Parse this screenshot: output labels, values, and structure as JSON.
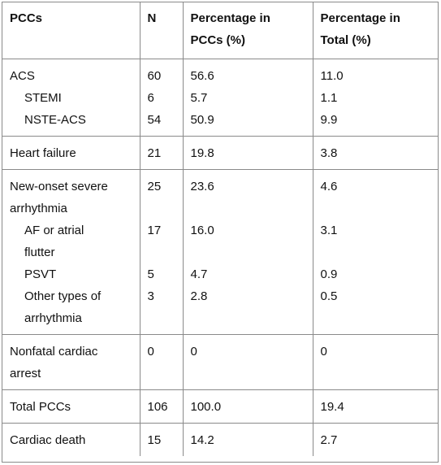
{
  "header": {
    "col1": "PCCs",
    "col2": "N",
    "col3_line1": "Percentage in",
    "col3_line2": "PCCs (%)",
    "col4_line1": "Percentage in",
    "col4_line2": "Total (%)"
  },
  "groups": [
    {
      "lines": [
        {
          "label": "ACS",
          "n": "60",
          "pct_pccs": "56.6",
          "pct_total": "11.0"
        },
        {
          "label": "STEMI",
          "n": "6",
          "pct_pccs": "5.7",
          "pct_total": "1.1",
          "indent": true
        },
        {
          "label": "NSTE-ACS",
          "n": "54",
          "pct_pccs": "50.9",
          "pct_total": "9.9",
          "indent": true
        }
      ]
    },
    {
      "lines": [
        {
          "label": "Heart failure",
          "n": "21",
          "pct_pccs": "19.8",
          "pct_total": "3.8"
        }
      ]
    },
    {
      "lines": [
        {
          "label": "New-onset severe",
          "n": "25",
          "pct_pccs": "23.6",
          "pct_total": "4.6"
        },
        {
          "label": "arrhythmia",
          "n": "",
          "pct_pccs": "",
          "pct_total": ""
        },
        {
          "label": "AF or atrial",
          "n": "17",
          "pct_pccs": "16.0",
          "pct_total": "3.1",
          "indent": true
        },
        {
          "label": "flutter",
          "n": "",
          "pct_pccs": "",
          "pct_total": "",
          "indent": true
        },
        {
          "label": "PSVT",
          "n": "5",
          "pct_pccs": "4.7",
          "pct_total": "0.9",
          "indent": true
        },
        {
          "label": "Other types of",
          "n": "3",
          "pct_pccs": "2.8",
          "pct_total": "0.5",
          "indent": true
        },
        {
          "label": "arrhythmia",
          "n": "",
          "pct_pccs": "",
          "pct_total": "",
          "indent": true
        }
      ]
    },
    {
      "lines": [
        {
          "label": "Nonfatal cardiac",
          "n": "0",
          "pct_pccs": "0",
          "pct_total": "0"
        },
        {
          "label": "arrest",
          "n": "",
          "pct_pccs": "",
          "pct_total": ""
        }
      ]
    },
    {
      "lines": [
        {
          "label": "Total PCCs",
          "n": "106",
          "pct_pccs": "100.0",
          "pct_total": "19.4"
        }
      ]
    },
    {
      "lines": [
        {
          "label": "Cardiac death",
          "n": "15",
          "pct_pccs": "14.2",
          "pct_total": "2.7"
        }
      ]
    }
  ]
}
